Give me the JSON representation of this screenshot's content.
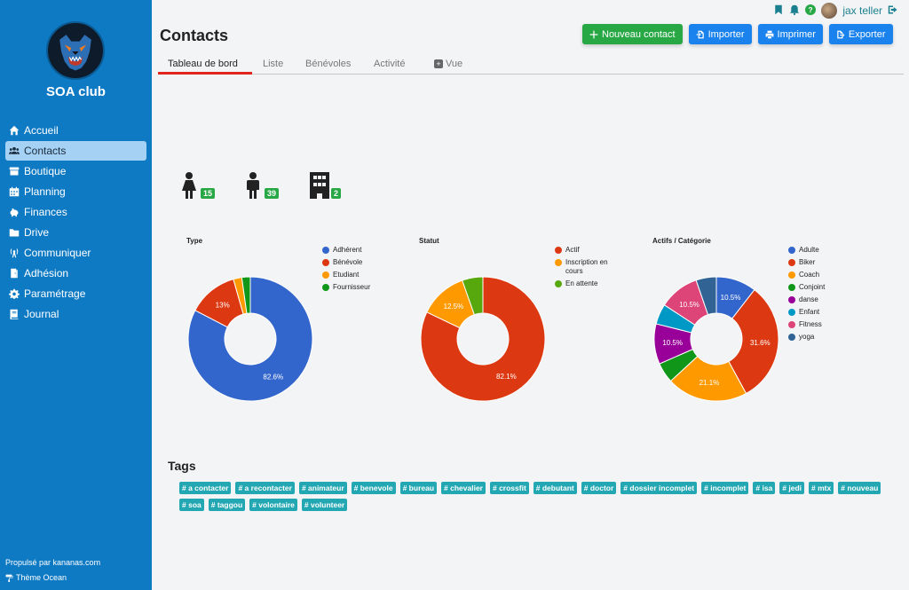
{
  "sidebar": {
    "club_name": "SOA club",
    "items": [
      {
        "label": "Accueil",
        "icon": "home-icon"
      },
      {
        "label": "Contacts",
        "icon": "users-icon",
        "active": true
      },
      {
        "label": "Boutique",
        "icon": "store-icon"
      },
      {
        "label": "Planning",
        "icon": "calendar-icon"
      },
      {
        "label": "Finances",
        "icon": "piggy-bank-icon"
      },
      {
        "label": "Drive",
        "icon": "folder-icon"
      },
      {
        "label": "Communiquer",
        "icon": "broadcast-icon"
      },
      {
        "label": "Adhésion",
        "icon": "door-icon"
      },
      {
        "label": "Paramétrage",
        "icon": "gear-icon"
      },
      {
        "label": "Journal",
        "icon": "book-icon"
      }
    ],
    "powered_by": "Propulsé par kananas.com",
    "theme": "Thème Ocean"
  },
  "topbar": {
    "user_name": "jax teller"
  },
  "header": {
    "title": "Contacts",
    "buttons": {
      "new_contact": "Nouveau contact",
      "import": "Importer",
      "print": "Imprimer",
      "export": "Exporter"
    }
  },
  "tabs": [
    {
      "label": "Tableau de bord",
      "active": true
    },
    {
      "label": "Liste"
    },
    {
      "label": "Bénévoles"
    },
    {
      "label": "Activité"
    },
    {
      "label": "Vue"
    }
  ],
  "stats": {
    "female": "15",
    "male": "39",
    "organization": "2"
  },
  "chart_data": [
    {
      "type": "pie",
      "title": "Type",
      "categories": [
        "Adhérent",
        "Bénévole",
        "Etudiant",
        "Fournisseur"
      ],
      "values": [
        82.6,
        13,
        2.2,
        2.2
      ],
      "labels": [
        "82.6%",
        "13%",
        "",
        ""
      ],
      "colors": [
        "#3366cc",
        "#dc3912",
        "#ff9900",
        "#109618"
      ]
    },
    {
      "type": "pie",
      "title": "Statut",
      "categories": [
        "Actif",
        "Inscription en cours",
        "En attente"
      ],
      "values": [
        82.1,
        12.5,
        5.4
      ],
      "labels": [
        "82.1%",
        "12.5%",
        ""
      ],
      "colors": [
        "#dc3912",
        "#ff9900",
        "#57a80c"
      ]
    },
    {
      "type": "pie",
      "title": "Actifs / Catégorie",
      "categories": [
        "Adulte",
        "Biker",
        "Coach",
        "Conjoint",
        "danse",
        "Enfant",
        "Fitness",
        "yoga"
      ],
      "values": [
        10.5,
        31.6,
        21.1,
        5.3,
        10.5,
        5.3,
        10.5,
        5.3
      ],
      "labels": [
        "10.5%",
        "31.6%",
        "21.1%",
        "",
        "10.5%",
        "",
        "10.5%",
        ""
      ],
      "colors": [
        "#3366cc",
        "#dc3912",
        "#ff9900",
        "#109618",
        "#990099",
        "#0099c6",
        "#dd4477",
        "#316395"
      ]
    }
  ],
  "tags": {
    "title": "Tags",
    "items": [
      "# a contacter",
      "# a recontacter",
      "# animateur",
      "# benevole",
      "# bureau",
      "# chevalier",
      "# crossfit",
      "# debutant",
      "# doctor",
      "# dossier incomplet",
      "# incomplet",
      "# isa",
      "# jedi",
      "# mtx",
      "# nouveau",
      "# soa",
      "# taggou",
      "# volontaire",
      "# volunteer"
    ]
  }
}
